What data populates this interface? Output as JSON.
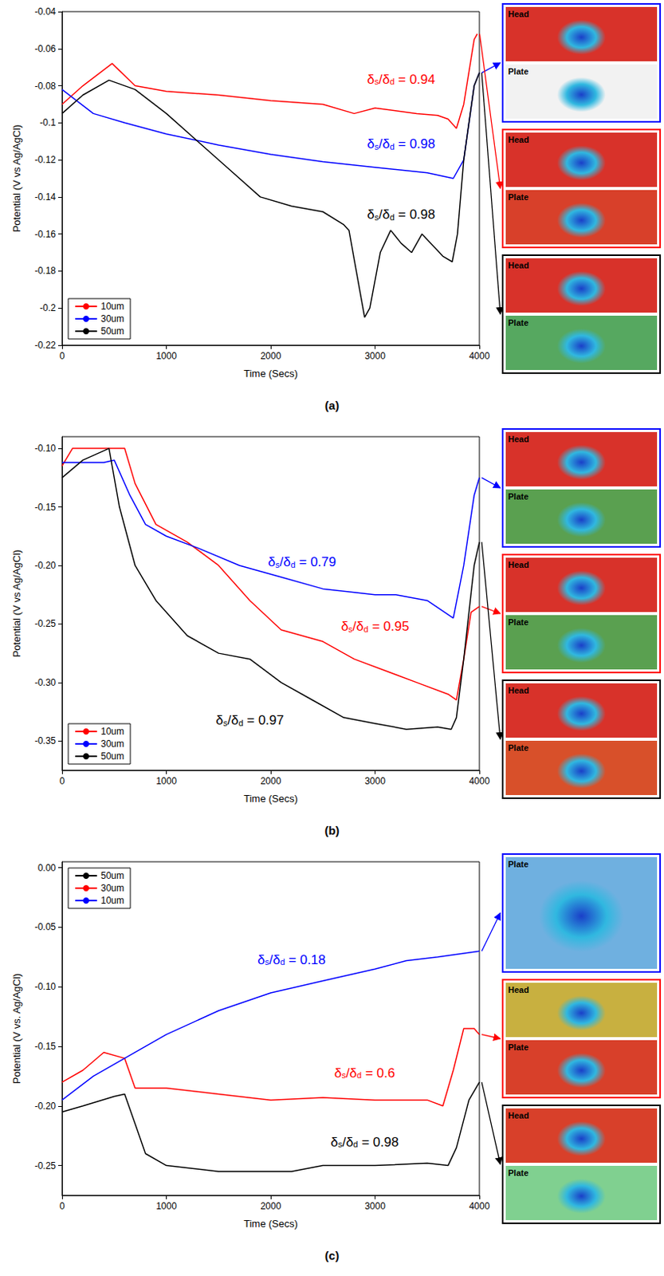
{
  "chart_data": [
    {
      "type": "line",
      "title": "(a)",
      "x_label": "Time (Secs)",
      "y_label": "Potential (V vs Ag/AgCl)",
      "xlim": [
        0,
        4000
      ],
      "xticks": [
        0,
        1000,
        2000,
        3000,
        4000
      ],
      "ylim": [
        -0.22,
        -0.04
      ],
      "yticks": [
        -0.22,
        -0.2,
        -0.18,
        -0.16,
        -0.14,
        -0.12,
        -0.1,
        -0.08,
        -0.06,
        -0.04
      ],
      "grid": false,
      "legend": "lower left",
      "ratio_label": "δs/δd =",
      "series": [
        {
          "name": "10um",
          "color": "#ff0000",
          "x": [
            0,
            200,
            480,
            700,
            1000,
            1500,
            2000,
            2500,
            2800,
            3000,
            3400,
            3600,
            3700,
            3780,
            3850,
            3950,
            3980
          ],
          "values": [
            -0.09,
            -0.08,
            -0.068,
            -0.08,
            -0.083,
            -0.085,
            -0.088,
            -0.09,
            -0.095,
            -0.092,
            -0.095,
            -0.096,
            -0.098,
            -0.103,
            -0.09,
            -0.055,
            -0.052
          ],
          "annotation": {
            "value": 0.94,
            "x": 3250,
            "y": -0.075
          }
        },
        {
          "name": "30um",
          "color": "#0000ff",
          "x": [
            0,
            300,
            600,
            1000,
            1500,
            2000,
            2500,
            3000,
            3500,
            3750,
            3850,
            3950,
            4000
          ],
          "values": [
            -0.082,
            -0.095,
            -0.1,
            -0.106,
            -0.112,
            -0.117,
            -0.121,
            -0.124,
            -0.127,
            -0.13,
            -0.12,
            -0.08,
            -0.073
          ],
          "annotation": {
            "value": 0.98,
            "x": 3250,
            "y": -0.11
          }
        },
        {
          "name": "50um",
          "color": "#000000",
          "x": [
            0,
            200,
            450,
            700,
            1000,
            1300,
            1600,
            1900,
            2200,
            2500,
            2700,
            2750,
            2820,
            2900,
            2950,
            3050,
            3150,
            3250,
            3350,
            3450,
            3650,
            3740,
            3790,
            3850,
            3950,
            4000
          ],
          "values": [
            -0.095,
            -0.085,
            -0.077,
            -0.082,
            -0.095,
            -0.11,
            -0.125,
            -0.14,
            -0.145,
            -0.148,
            -0.155,
            -0.158,
            -0.18,
            -0.205,
            -0.2,
            -0.17,
            -0.158,
            -0.165,
            -0.17,
            -0.16,
            -0.172,
            -0.175,
            -0.16,
            -0.12,
            -0.08,
            -0.073
          ],
          "annotation": {
            "value": 0.98,
            "x": 3250,
            "y": -0.148
          }
        }
      ],
      "insets": [
        {
          "series": "30um",
          "color": "#0000ff",
          "images": [
            "Head",
            "Plate"
          ]
        },
        {
          "series": "10um",
          "color": "#ff0000",
          "images": [
            "Head",
            "Plate"
          ]
        },
        {
          "series": "50um",
          "color": "#000000",
          "images": [
            "Head",
            "Plate"
          ]
        }
      ]
    },
    {
      "type": "line",
      "title": "(b)",
      "x_label": "Time (Secs)",
      "y_label": "Potential (V vs Ag/AgCl)",
      "xlim": [
        0,
        4000
      ],
      "xticks": [
        0,
        1000,
        2000,
        3000,
        4000
      ],
      "ylim": [
        -0.375,
        -0.09
      ],
      "yticks": [
        -0.35,
        {
          "value": -0.3,
          "label": "-0.30"
        },
        -0.25,
        {
          "value": -0.2,
          "label": "-0.20"
        },
        -0.15,
        {
          "value": -0.1,
          "label": "-0.10"
        }
      ],
      "grid": false,
      "legend": "lower left",
      "ratio_label": "δs/δd =",
      "series": [
        {
          "name": "10um",
          "color": "#ff0000",
          "x": [
            0,
            100,
            500,
            600,
            700,
            900,
            1200,
            1500,
            1800,
            2100,
            2500,
            2800,
            3100,
            3400,
            3700,
            3780,
            3850,
            3920,
            4000
          ],
          "values": [
            -0.115,
            -0.1,
            -0.1,
            -0.1,
            -0.13,
            -0.165,
            -0.18,
            -0.2,
            -0.23,
            -0.255,
            -0.265,
            -0.28,
            -0.29,
            -0.3,
            -0.31,
            -0.315,
            -0.28,
            -0.24,
            -0.235
          ],
          "annotation": {
            "value": 0.95,
            "x": 3000,
            "y": -0.25
          }
        },
        {
          "name": "30um",
          "color": "#0000ff",
          "x": [
            0,
            400,
            500,
            650,
            800,
            1000,
            1300,
            1700,
            2100,
            2500,
            3000,
            3200,
            3500,
            3750,
            3850,
            3950,
            4000
          ],
          "values": [
            -0.112,
            -0.112,
            -0.11,
            -0.14,
            -0.165,
            -0.175,
            -0.185,
            -0.2,
            -0.21,
            -0.22,
            -0.225,
            -0.225,
            -0.23,
            -0.245,
            -0.2,
            -0.14,
            -0.125
          ],
          "annotation": {
            "value": 0.79,
            "x": 2300,
            "y": -0.195
          }
        },
        {
          "name": "50um",
          "color": "#000000",
          "x": [
            0,
            200,
            450,
            550,
            700,
            900,
            1200,
            1500,
            1800,
            2100,
            2400,
            2700,
            3000,
            3300,
            3600,
            3730,
            3780,
            3850,
            3950,
            4000
          ],
          "values": [
            -0.125,
            -0.11,
            -0.1,
            -0.15,
            -0.2,
            -0.23,
            -0.26,
            -0.275,
            -0.28,
            -0.3,
            -0.315,
            -0.33,
            -0.335,
            -0.34,
            -0.338,
            -0.34,
            -0.33,
            -0.28,
            -0.2,
            -0.18
          ],
          "annotation": {
            "value": 0.97,
            "x": 1800,
            "y": -0.33
          }
        }
      ],
      "insets": [
        {
          "series": "30um",
          "color": "#0000ff",
          "images": [
            "Head",
            "Plate"
          ]
        },
        {
          "series": "10um",
          "color": "#ff0000",
          "images": [
            "Head",
            "Plate"
          ]
        },
        {
          "series": "50um",
          "color": "#000000",
          "images": [
            "Head",
            "Plate"
          ]
        }
      ]
    },
    {
      "type": "line",
      "title": "(c)",
      "x_label": "Time (Secs)",
      "y_label": "Potential (V vs. Ag/AgCl)",
      "xlim": [
        0,
        4000
      ],
      "xticks": [
        0,
        1000,
        2000,
        3000,
        4000
      ],
      "ylim": [
        -0.275,
        0.005
      ],
      "yticks": [
        -0.25,
        {
          "value": -0.2,
          "label": "-0.20"
        },
        -0.15,
        {
          "value": -0.1,
          "label": "-0.10"
        },
        -0.05,
        {
          "value": 0,
          "label": "0.00"
        }
      ],
      "grid": false,
      "legend": "upper left",
      "ratio_label": "δs/δd =",
      "series": [
        {
          "name": "50um",
          "color": "#000000",
          "x": [
            0,
            200,
            500,
            600,
            700,
            800,
            1000,
            1500,
            2000,
            2200,
            2500,
            3000,
            3500,
            3700,
            3780,
            3900,
            4000
          ],
          "values": [
            -0.205,
            -0.2,
            -0.192,
            -0.19,
            -0.215,
            -0.24,
            -0.25,
            -0.255,
            -0.255,
            -0.255,
            -0.25,
            -0.25,
            -0.248,
            -0.25,
            -0.235,
            -0.195,
            -0.18
          ],
          "annotation": {
            "value": 0.98,
            "x": 2900,
            "y": -0.228
          }
        },
        {
          "name": "30um",
          "color": "#ff0000",
          "x": [
            0,
            200,
            400,
            600,
            700,
            1000,
            1500,
            2000,
            2500,
            3000,
            3500,
            3650,
            3750,
            3850,
            3950,
            4000
          ],
          "values": [
            -0.18,
            -0.17,
            -0.155,
            -0.16,
            -0.185,
            -0.185,
            -0.19,
            -0.195,
            -0.193,
            -0.195,
            -0.195,
            -0.2,
            -0.17,
            -0.135,
            -0.135,
            -0.14
          ],
          "annotation": {
            "value": 0.6,
            "x": 2900,
            "y": -0.17
          }
        },
        {
          "name": "10um",
          "color": "#0000ff",
          "x": [
            0,
            300,
            700,
            1000,
            1500,
            2000,
            2500,
            3000,
            3300,
            3600,
            4000
          ],
          "values": [
            -0.195,
            -0.175,
            -0.155,
            -0.14,
            -0.12,
            -0.105,
            -0.095,
            -0.085,
            -0.078,
            -0.075,
            -0.07
          ],
          "annotation": {
            "value": 0.18,
            "x": 2200,
            "y": -0.075
          }
        }
      ],
      "insets": [
        {
          "series": "10um",
          "color": "#0000ff",
          "images": [
            "Plate"
          ]
        },
        {
          "series": "30um",
          "color": "#ff0000",
          "images": [
            "Head",
            "Plate"
          ]
        },
        {
          "series": "50um",
          "color": "#000000",
          "images": [
            "Head",
            "Plate"
          ]
        }
      ]
    }
  ]
}
